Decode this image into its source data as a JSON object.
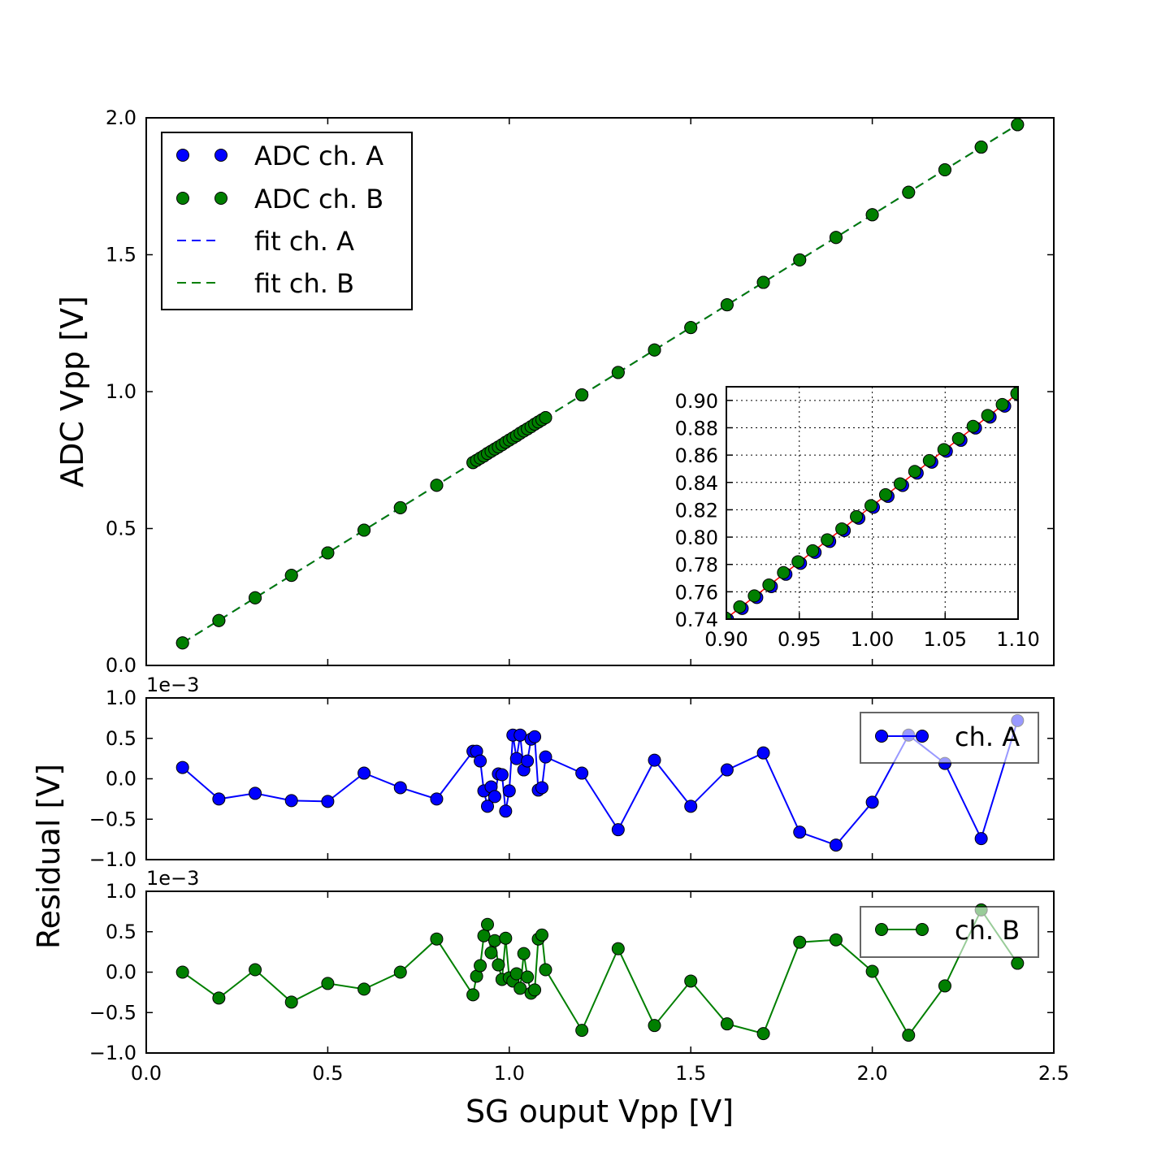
{
  "figure": {
    "xlabel": "SG ouput Vpp [V]",
    "ylabel_main": "ADC Vpp [V]",
    "ylabel_residual": "Residual [V]",
    "residual_offset": "1e−3"
  },
  "colors": {
    "chA": "#0000ff",
    "chB": "#007f00",
    "fit_inset": "#ff0000"
  },
  "chart_data": [
    {
      "type": "scatter",
      "panel": "main",
      "xlim": [
        0.0,
        2.5
      ],
      "ylim": [
        0.0,
        2.0
      ],
      "x_ticks": [
        "0.0",
        "0.5",
        "1.0",
        "1.5",
        "2.0",
        "2.5"
      ],
      "y_ticks": [
        "0.0",
        "0.5",
        "1.0",
        "1.5",
        "2.0"
      ],
      "legend_position": "upper-left",
      "legend": [
        "ADC ch. A",
        "ADC ch. B",
        "fit ch. A",
        "fit ch. B"
      ],
      "fit": {
        "slope": 0.8229,
        "intercept": 0.0
      },
      "x": [
        0.1,
        0.2,
        0.3,
        0.4,
        0.5,
        0.6,
        0.7,
        0.8,
        0.9,
        0.91,
        0.92,
        0.93,
        0.94,
        0.95,
        0.96,
        0.97,
        0.98,
        0.99,
        1.0,
        1.01,
        1.02,
        1.03,
        1.04,
        1.05,
        1.06,
        1.07,
        1.08,
        1.09,
        1.1,
        1.2,
        1.3,
        1.4,
        1.5,
        1.6,
        1.7,
        1.8,
        1.9,
        2.0,
        2.1,
        2.2,
        2.3,
        2.4
      ],
      "series": [
        {
          "name": "ADC ch. A",
          "y": [
            0.0824,
            0.164,
            0.247,
            0.329,
            0.411,
            0.494,
            0.576,
            0.658,
            0.741,
            0.749,
            0.757,
            0.765,
            0.774,
            0.782,
            0.79,
            0.798,
            0.806,
            0.815,
            0.823,
            0.831,
            0.839,
            0.848,
            0.856,
            0.864,
            0.872,
            0.881,
            0.889,
            0.897,
            0.905,
            0.988,
            1.07,
            1.152,
            1.234,
            1.317,
            1.399,
            1.481,
            1.563,
            1.646,
            1.728,
            1.81,
            1.893,
            1.975
          ]
        },
        {
          "name": "ADC ch. B",
          "y": [
            0.0823,
            0.164,
            0.247,
            0.329,
            0.411,
            0.494,
            0.576,
            0.658,
            0.741,
            0.749,
            0.757,
            0.765,
            0.774,
            0.782,
            0.79,
            0.798,
            0.806,
            0.815,
            0.823,
            0.831,
            0.839,
            0.848,
            0.856,
            0.864,
            0.872,
            0.881,
            0.889,
            0.897,
            0.905,
            0.988,
            1.07,
            1.152,
            1.234,
            1.317,
            1.399,
            1.481,
            1.563,
            1.646,
            1.728,
            1.81,
            1.893,
            1.975
          ]
        }
      ],
      "inset": {
        "xlim": [
          0.9,
          1.1
        ],
        "ylim": [
          0.74,
          0.91
        ],
        "x_ticks": [
          "0.90",
          "0.95",
          "1.00",
          "1.05",
          "1.10"
        ],
        "y_ticks": [
          "0.74",
          "0.76",
          "0.78",
          "0.80",
          "0.82",
          "0.84",
          "0.86",
          "0.88",
          "0.90"
        ],
        "grid": true
      }
    },
    {
      "type": "line",
      "panel": "residual-a",
      "legend": "ch. A",
      "legend_position": "upper-right",
      "ylim": [
        -1.0,
        1.0
      ],
      "y_ticks": [
        "1.0",
        "0.5",
        "0.0",
        "−0.5",
        "−1.0"
      ],
      "x": [
        0.1,
        0.2,
        0.3,
        0.4,
        0.5,
        0.6,
        0.7,
        0.8,
        0.9,
        0.91,
        0.92,
        0.93,
        0.94,
        0.95,
        0.96,
        0.97,
        0.98,
        0.99,
        1.0,
        1.01,
        1.02,
        1.03,
        1.04,
        1.05,
        1.06,
        1.07,
        1.08,
        1.09,
        1.1,
        1.2,
        1.3,
        1.4,
        1.5,
        1.6,
        1.7,
        1.8,
        1.9,
        2.0,
        2.1,
        2.2,
        2.3,
        2.4
      ],
      "y": [
        0.14,
        -0.25,
        -0.18,
        -0.27,
        -0.28,
        0.07,
        -0.11,
        -0.25,
        0.34,
        0.34,
        0.22,
        -0.15,
        -0.34,
        -0.1,
        -0.22,
        0.06,
        0.05,
        -0.4,
        -0.15,
        0.54,
        0.25,
        0.54,
        0.11,
        0.22,
        0.49,
        0.52,
        -0.14,
        -0.11,
        0.27,
        0.07,
        -0.63,
        0.23,
        -0.34,
        0.11,
        0.32,
        -0.66,
        -0.82,
        -0.29,
        0.54,
        0.19,
        -0.74,
        0.72
      ]
    },
    {
      "type": "line",
      "panel": "residual-b",
      "legend": "ch. B",
      "legend_position": "upper-right",
      "ylim": [
        -1.0,
        1.0
      ],
      "y_ticks": [
        "1.0",
        "0.5",
        "0.0",
        "−0.5",
        "−1.0"
      ],
      "x_ticks": [
        "0.0",
        "0.5",
        "1.0",
        "1.5",
        "2.0",
        "2.5"
      ],
      "x": [
        0.1,
        0.2,
        0.3,
        0.4,
        0.5,
        0.6,
        0.7,
        0.8,
        0.9,
        0.91,
        0.92,
        0.93,
        0.94,
        0.95,
        0.96,
        0.97,
        0.98,
        0.99,
        1.0,
        1.01,
        1.02,
        1.03,
        1.04,
        1.05,
        1.06,
        1.07,
        1.08,
        1.09,
        1.1,
        1.2,
        1.3,
        1.4,
        1.5,
        1.6,
        1.7,
        1.8,
        1.9,
        2.0,
        2.1,
        2.2,
        2.3,
        2.4
      ],
      "y": [
        0.0,
        -0.32,
        0.03,
        -0.37,
        -0.14,
        -0.21,
        0.0,
        0.41,
        -0.28,
        -0.05,
        0.08,
        0.45,
        0.59,
        0.24,
        0.39,
        0.09,
        -0.09,
        0.42,
        -0.07,
        -0.11,
        -0.02,
        -0.2,
        0.23,
        -0.06,
        -0.26,
        -0.22,
        0.41,
        0.46,
        0.03,
        -0.72,
        0.29,
        -0.66,
        -0.11,
        -0.64,
        -0.76,
        0.37,
        0.4,
        0.01,
        -0.78,
        -0.17,
        0.77,
        0.11
      ]
    }
  ]
}
